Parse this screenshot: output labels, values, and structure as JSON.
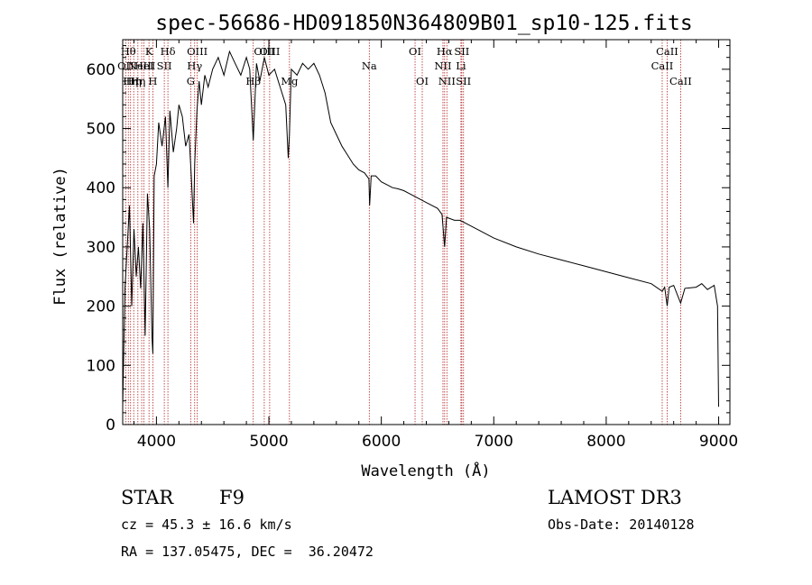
{
  "chart_data": {
    "type": "line",
    "title": "spec-56686-HD091850N364809B01_sp10-125.fits",
    "xlabel": "Wavelength (Å)",
    "ylabel": "Flux (relative)",
    "xlim": [
      3700,
      9100
    ],
    "ylim": [
      0,
      650
    ],
    "xticks": [
      4000,
      5000,
      6000,
      7000,
      8000,
      9000
    ],
    "yticks": [
      0,
      100,
      200,
      300,
      400,
      500,
      600
    ],
    "grid": false,
    "series": [
      {
        "x": [
          3700,
          3720,
          3740,
          3760,
          3780,
          3800,
          3820,
          3840,
          3860,
          3880,
          3900,
          3920,
          3940,
          3960,
          3968,
          3980,
          4000,
          4020,
          4050,
          4080,
          4102,
          4120,
          4150,
          4180,
          4200,
          4230,
          4260,
          4290,
          4310,
          4330,
          4340,
          4360,
          4380,
          4400,
          4430,
          4460,
          4500,
          4550,
          4600,
          4650,
          4700,
          4750,
          4800,
          4830,
          4861,
          4890,
          4920,
          4960,
          5000,
          5050,
          5100,
          5150,
          5172,
          5183,
          5200,
          5250,
          5300,
          5350,
          5400,
          5450,
          5500,
          5550,
          5600,
          5650,
          5700,
          5750,
          5800,
          5850,
          5890,
          5896,
          5910,
          5950,
          6000,
          6050,
          6100,
          6150,
          6200,
          6250,
          6300,
          6400,
          6500,
          6540,
          6563,
          6580,
          6650,
          6700,
          6800,
          7000,
          7200,
          7400,
          7600,
          7800,
          8000,
          8200,
          8400,
          8498,
          8520,
          8542,
          8560,
          8600,
          8662,
          8700,
          8800,
          8850,
          8900,
          8960,
          8990,
          9000
        ],
        "y": [
          30,
          230,
          300,
          370,
          200,
          330,
          250,
          300,
          230,
          340,
          150,
          390,
          330,
          150,
          120,
          420,
          440,
          510,
          470,
          520,
          400,
          530,
          460,
          500,
          540,
          520,
          470,
          490,
          420,
          340,
          440,
          530,
          580,
          540,
          590,
          570,
          600,
          620,
          590,
          630,
          610,
          590,
          620,
          600,
          480,
          610,
          580,
          620,
          590,
          600,
          570,
          540,
          450,
          490,
          600,
          590,
          610,
          600,
          610,
          590,
          560,
          510,
          490,
          470,
          455,
          440,
          430,
          425,
          415,
          370,
          420,
          420,
          410,
          405,
          400,
          398,
          395,
          390,
          385,
          375,
          365,
          355,
          300,
          350,
          345,
          345,
          335,
          315,
          300,
          288,
          278,
          268,
          258,
          248,
          238,
          225,
          232,
          200,
          232,
          235,
          205,
          230,
          232,
          238,
          228,
          235,
          200,
          30
        ]
      }
    ],
    "lines": [
      {
        "x": 3727,
        "name": "OII",
        "row": 1
      },
      {
        "x": 3750,
        "name": "Hθ",
        "row": 0
      },
      {
        "x": 3770,
        "name": "Hη",
        "row": 2
      },
      {
        "x": 3798,
        "name": "Hη",
        "row": 2
      },
      {
        "x": 3835,
        "name": "Hη",
        "row": 2
      },
      {
        "x": 3869,
        "name": "NeIII",
        "row": 1
      },
      {
        "x": 3889,
        "name": "HeI",
        "row": 1
      },
      {
        "x": 3934,
        "name": "K",
        "row": 0
      },
      {
        "x": 3968,
        "name": "H",
        "row": 2
      },
      {
        "x": 4070,
        "name": "SII",
        "row": 1
      },
      {
        "x": 4102,
        "name": "Hδ",
        "row": 0
      },
      {
        "x": 4305,
        "name": "G",
        "row": 2
      },
      {
        "x": 4340,
        "name": "Hγ",
        "row": 1
      },
      {
        "x": 4363,
        "name": "OIII",
        "row": 0
      },
      {
        "x": 4861,
        "name": "Hβ",
        "row": 2
      },
      {
        "x": 4959,
        "name": "OIII",
        "row": 0
      },
      {
        "x": 5007,
        "name": "OIII",
        "row": 0
      },
      {
        "x": 5183,
        "name": "Mg",
        "row": 2
      },
      {
        "x": 5893,
        "name": "Na",
        "row": 1
      },
      {
        "x": 6300,
        "name": "OI",
        "row": 0
      },
      {
        "x": 6364,
        "name": "OI",
        "row": 2
      },
      {
        "x": 6548,
        "name": "NII",
        "row": 1
      },
      {
        "x": 6563,
        "name": "Hα",
        "row": 0
      },
      {
        "x": 6583,
        "name": "NII",
        "row": 2
      },
      {
        "x": 6708,
        "name": "Li",
        "row": 1
      },
      {
        "x": 6716,
        "name": "SII",
        "row": 0
      },
      {
        "x": 6731,
        "name": "SII",
        "row": 2
      },
      {
        "x": 8498,
        "name": "CaII",
        "row": 1
      },
      {
        "x": 8542,
        "name": "CaII",
        "row": 0
      },
      {
        "x": 8662,
        "name": "CaII",
        "row": 2
      }
    ]
  },
  "info": {
    "class_label": "STAR",
    "subclass": "F9",
    "cz": "cz = 45.3 ± 16.6 km/s",
    "coords": "RA = 137.05475, DEC =  36.20472",
    "survey": "LAMOST DR3",
    "obs_date": "Obs-Date: 20140128"
  },
  "colors": {
    "line_marker": "#b22222",
    "spectrum": "#000000"
  }
}
